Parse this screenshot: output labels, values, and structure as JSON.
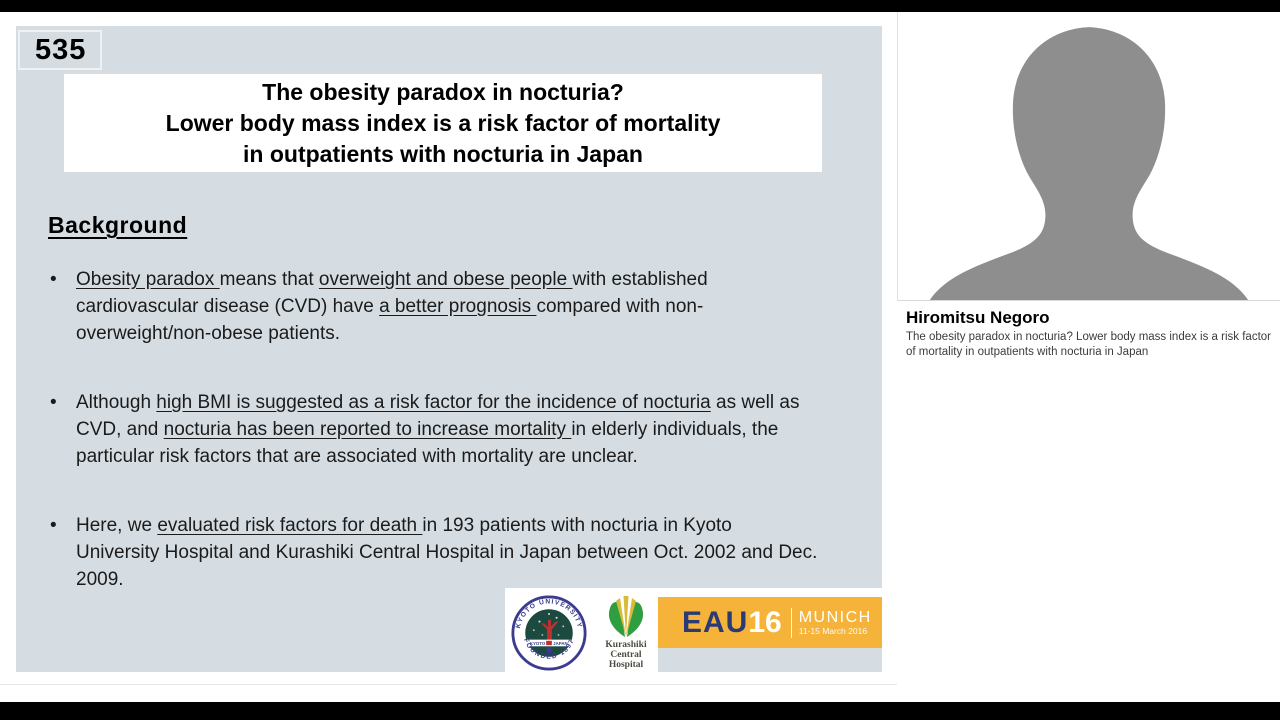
{
  "colors": {
    "slide_bg": "#d5dde3",
    "eau_orange": "#f5b339",
    "eau_navy": "#2b3a74",
    "kyoto_navy": "#3b3b8f",
    "kyoto_inner_green": "#1d4a3f",
    "kyoto_red": "#c22f2f",
    "kurashiki_green": "#2f9e41",
    "kurashiki_yellow": "#d9bb3a",
    "silhouette_gray": "#8e8e8e"
  },
  "slide": {
    "badge": "535",
    "title_lines": [
      "The obesity paradox in nocturia?",
      "Lower body mass index is a risk factor of mortality",
      "in outpatients with nocturia in Japan"
    ],
    "section_heading": "Background",
    "bullets": [
      [
        {
          "t": "Obesity paradox ",
          "u": true
        },
        {
          "t": "means that ",
          "u": false
        },
        {
          "t": "overweight and obese people ",
          "u": true
        },
        {
          "t": "with established cardiovascular disease (CVD) have ",
          "u": false
        },
        {
          "t": "a better prognosis ",
          "u": true
        },
        {
          "t": "compared with non-overweight/non-obese patients.",
          "u": false
        }
      ],
      [
        {
          "t": "Although ",
          "u": false
        },
        {
          "t": "high BMI is suggested as a risk factor for the incidence of nocturia",
          "u": true
        },
        {
          "t": " as well as CVD, and ",
          "u": false
        },
        {
          "t": "nocturia has been reported to increase mortality ",
          "u": true
        },
        {
          "t": "in elderly individuals, the particular risk factors that are associated with mortality are unclear.",
          "u": false
        }
      ],
      [
        {
          "t": "Here, we ",
          "u": false
        },
        {
          "t": "evaluated risk factors for death ",
          "u": true
        },
        {
          "t": "in 193 patients with nocturia in Kyoto University Hospital and Kurashiki Central Hospital in Japan between Oct. 2002 and Dec. 2009.",
          "u": false
        }
      ]
    ],
    "logos": {
      "kyoto": {
        "ring_top": "KYOTO UNIVERSITY",
        "ring_bottom": "FOUNDED 1897",
        "center_left": "KYOTO",
        "center_right": "JAPAN"
      },
      "kurashiki": {
        "line1": "Kurashiki",
        "line2": "Central",
        "line3": "Hospital"
      },
      "eau": {
        "brand": "EAU",
        "year": "16",
        "city": "MUNICH",
        "dates": "11-15 March 2016"
      }
    }
  },
  "speaker": {
    "name": "Hiromitsu Negoro",
    "description": "The obesity paradox in nocturia? Lower body mass index is a risk factor of mortality in outpatients with nocturia in Japan"
  }
}
